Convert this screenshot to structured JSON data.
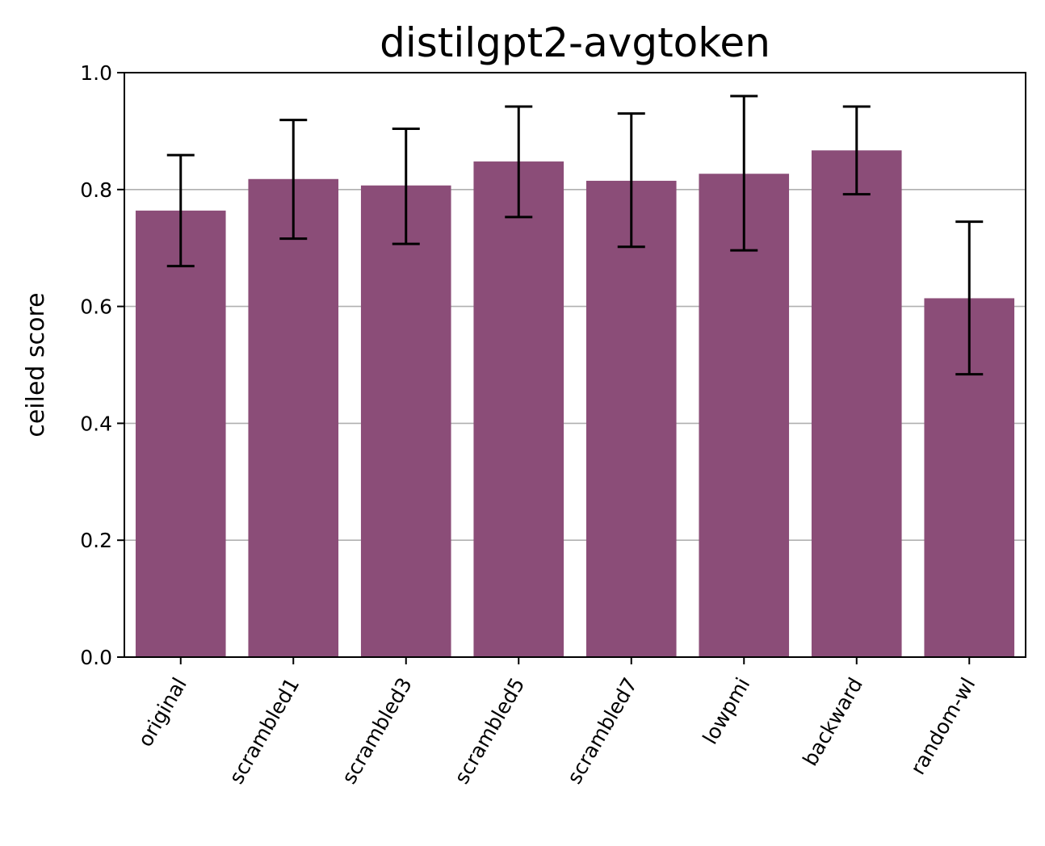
{
  "chart_data": {
    "type": "bar",
    "title": "distilgpt2-avgtoken",
    "xlabel": "",
    "ylabel": "ceiled score",
    "ylim": [
      0,
      1.0
    ],
    "yticks": [
      "0.0",
      "0.2",
      "0.4",
      "0.6",
      "0.8",
      "1.0"
    ],
    "grid": "y",
    "bar_color": "#8b4d78",
    "categories": [
      "original",
      "scrambled1",
      "scrambled3",
      "scrambled5",
      "scrambled7",
      "lowpmi",
      "backward",
      "random-wl"
    ],
    "values": [
      0.764,
      0.818,
      0.807,
      0.848,
      0.815,
      0.827,
      0.867,
      0.614
    ],
    "error_low": [
      0.669,
      0.716,
      0.707,
      0.753,
      0.702,
      0.696,
      0.792,
      0.484
    ],
    "error_high": [
      0.859,
      0.919,
      0.904,
      0.942,
      0.93,
      0.96,
      0.942,
      0.745
    ]
  }
}
